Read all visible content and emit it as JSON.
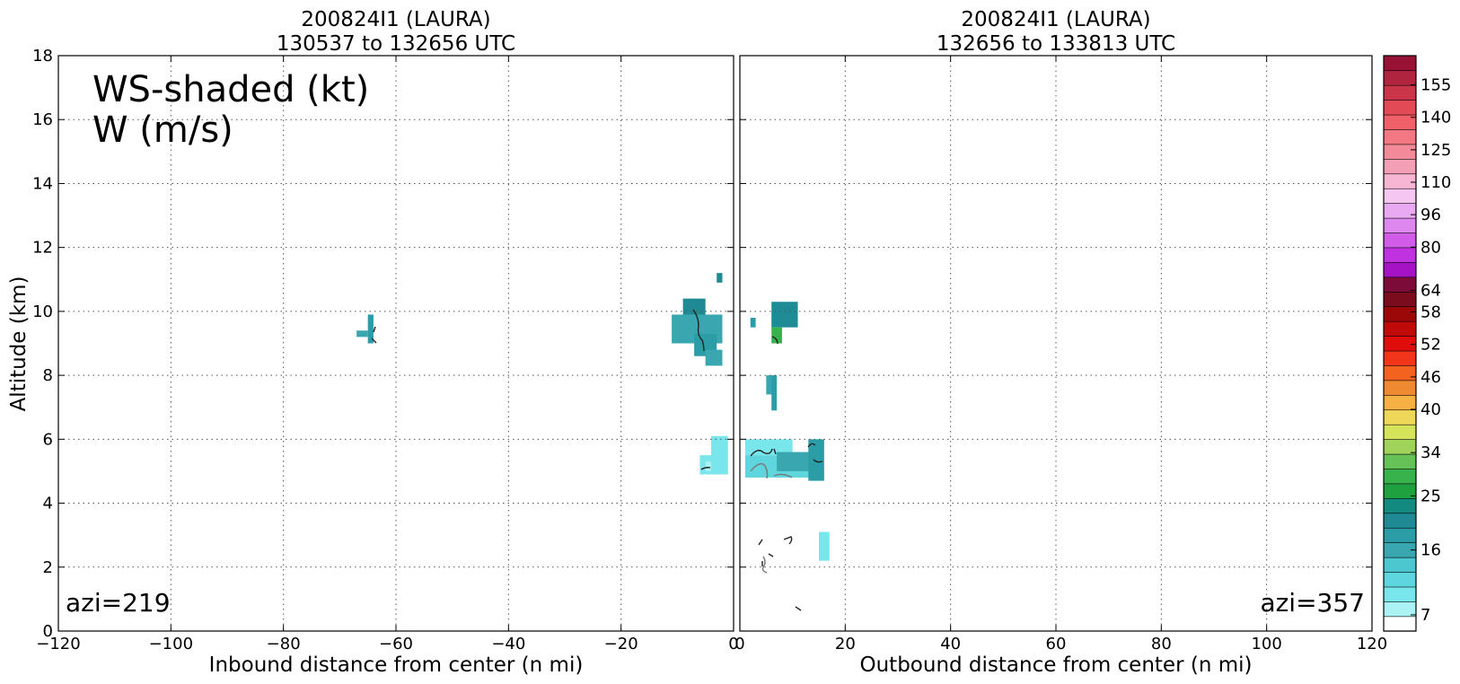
{
  "chart_data": [
    {
      "type": "heatmap",
      "title_line1": "200824I1 (LAURA)",
      "title_line2": "130537 to 132656 UTC",
      "xlabel": "Inbound distance from center (n mi)",
      "ylabel": "Altitude (km)",
      "xlim": [
        -120,
        0
      ],
      "ylim": [
        0,
        18
      ],
      "x_ticks": [
        "−120",
        "−100",
        "−80",
        "−60",
        "−40",
        "−20",
        "0"
      ],
      "y_ticks": [
        "0",
        "2",
        "4",
        "6",
        "8",
        "10",
        "12",
        "14",
        "16",
        "18"
      ],
      "grid": true,
      "annotations": [
        "WS-shaded (kt)",
        "W (m/s)"
      ],
      "corner_label": "azi=219",
      "cells": [
        {
          "x0": -67,
          "x1": -65,
          "y0": 9.2,
          "y1": 9.4,
          "color": "#3aa7b0"
        },
        {
          "x0": -65,
          "x1": -64,
          "y0": 9.0,
          "y1": 9.9,
          "color": "#2a9da6"
        },
        {
          "x0": -3,
          "x1": -2,
          "y0": 10.9,
          "y1": 11.2,
          "color": "#1f8b95"
        },
        {
          "x0": -9,
          "x1": -5,
          "y0": 9.7,
          "y1": 10.4,
          "color": "#208a94"
        },
        {
          "x0": -11,
          "x1": -2,
          "y0": 9.0,
          "y1": 9.9,
          "color": "#3aa7b0"
        },
        {
          "x0": -7,
          "x1": -3,
          "y0": 8.6,
          "y1": 9.3,
          "color": "#2a9da6"
        },
        {
          "x0": -5,
          "x1": -2,
          "y0": 8.3,
          "y1": 8.8,
          "color": "#3aa7b0"
        },
        {
          "x0": -4,
          "x1": -1,
          "y0": 5.4,
          "y1": 6.1,
          "color": "#79e6ec"
        },
        {
          "x0": -6,
          "x1": -1,
          "y0": 4.9,
          "y1": 5.5,
          "color": "#79e6ec"
        },
        {
          "x0": -5,
          "x1": -4,
          "y0": 5.0,
          "y1": 5.3,
          "color": "#aaf2f4"
        }
      ]
    },
    {
      "type": "heatmap",
      "title_line1": "200824I1 (LAURA)",
      "title_line2": "132656 to 133813 UTC",
      "xlabel": "Outbound distance from center (n mi)",
      "xlim": [
        0,
        120
      ],
      "ylim": [
        0,
        18
      ],
      "x_ticks": [
        "0",
        "20",
        "40",
        "60",
        "80",
        "100",
        "120"
      ],
      "grid": true,
      "corner_label": "azi=357",
      "cells": [
        {
          "x0": 6,
          "x1": 11,
          "y0": 9.5,
          "y1": 10.3,
          "color": "#1f8b95"
        },
        {
          "x0": 2,
          "x1": 3,
          "y0": 9.5,
          "y1": 9.8,
          "color": "#2a9da6"
        },
        {
          "x0": 6,
          "x1": 8,
          "y0": 9.0,
          "y1": 9.5,
          "color": "#37b24d"
        },
        {
          "x0": 5,
          "x1": 7,
          "y0": 7.4,
          "y1": 8.0,
          "color": "#3aa7b0"
        },
        {
          "x0": 6,
          "x1": 7,
          "y0": 6.9,
          "y1": 8.0,
          "color": "#2a9da6"
        },
        {
          "x0": 1,
          "x1": 10,
          "y0": 5.5,
          "y1": 6.0,
          "color": "#79e6ec"
        },
        {
          "x0": 1,
          "x1": 14,
          "y0": 4.8,
          "y1": 5.5,
          "color": "#5fd6dd"
        },
        {
          "x0": 7,
          "x1": 14,
          "y0": 5.0,
          "y1": 5.6,
          "color": "#3aa7b0"
        },
        {
          "x0": 13,
          "x1": 16,
          "y0": 4.7,
          "y1": 6.0,
          "color": "#2a9da6"
        },
        {
          "x0": 15,
          "x1": 17,
          "y0": 2.2,
          "y1": 3.1,
          "color": "#79e6ec"
        }
      ]
    }
  ],
  "colorbar": {
    "tick_labels": [
      "7",
      "16",
      "25",
      "34",
      "40",
      "46",
      "52",
      "58",
      "64",
      "80",
      "96",
      "110",
      "125",
      "140",
      "155"
    ],
    "colors": [
      "#ffffff",
      "#aaf2f4",
      "#79e6ec",
      "#5fd6dd",
      "#4cc6cf",
      "#3aa7b0",
      "#2a9da6",
      "#208a94",
      "#138a80",
      "#1fa140",
      "#37b24d",
      "#66c256",
      "#a0d35a",
      "#d6e45c",
      "#efd75a",
      "#f6b043",
      "#f08a32",
      "#f3621f",
      "#f2341a",
      "#e00d0d",
      "#c00909",
      "#9c0808",
      "#7a0c1e",
      "#7d0b3a",
      "#a613c5",
      "#c032e0",
      "#d05ce8",
      "#de87ef",
      "#eaaaf2",
      "#f5c6ef",
      "#f6b6d3",
      "#f39fb5",
      "#f28a9a",
      "#f37883",
      "#ef6068",
      "#e24a55",
      "#cb3549",
      "#b02440",
      "#981236"
    ]
  }
}
